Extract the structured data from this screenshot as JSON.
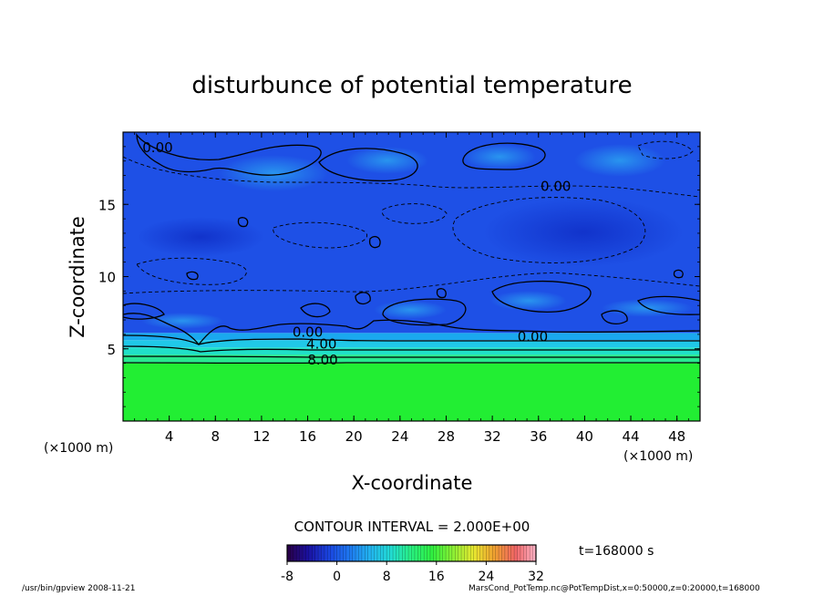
{
  "chart_data": {
    "type": "heatmap",
    "title": "disturbunce of potential temperature",
    "xlabel": "X-coordinate",
    "ylabel": "Z-coordinate",
    "x_unit": "(×1000 m)",
    "y_unit": "(×1000 m)",
    "xlim": [
      0,
      50
    ],
    "ylim": [
      0,
      20
    ],
    "x_ticks": [
      4,
      8,
      12,
      16,
      20,
      24,
      28,
      32,
      36,
      40,
      44,
      48
    ],
    "y_ticks": [
      5,
      10,
      15
    ],
    "contour_interval_text": "CONTOUR INTERVAL = 2.000E+00",
    "time_text": "t=168000 s",
    "colorbar": {
      "min": -8,
      "max": 32,
      "ticks": [
        -8,
        0,
        8,
        16,
        24,
        32
      ],
      "colors": [
        "#2a0044",
        "#1a10a0",
        "#1a44e0",
        "#1e78f0",
        "#22b4f0",
        "#22dcd4",
        "#28f080",
        "#30f040",
        "#8cf034",
        "#e8e830",
        "#f0a030",
        "#f06464",
        "#ffb4c8"
      ]
    },
    "bands": [
      {
        "z0": 0,
        "z1": 4,
        "value": 12,
        "color": "#22ee33"
      },
      {
        "z0": 4,
        "z1": 4.6,
        "value": 8,
        "color": "#28e890"
      },
      {
        "z0": 4.6,
        "z1": 5.1,
        "value": 6,
        "color": "#20e0c8"
      },
      {
        "z0": 5.1,
        "z1": 5.6,
        "value": 4,
        "color": "#20c8e8"
      },
      {
        "z0": 5.6,
        "z1": 6.1,
        "value": 2,
        "color": "#1aa8ee"
      },
      {
        "z0": 6.1,
        "z1": 20,
        "value": -2,
        "color": "#1e50e6"
      }
    ],
    "contour_labels": [
      {
        "x": 3.0,
        "z": 19.0,
        "text": "0.00"
      },
      {
        "x": 37.5,
        "z": 16.3,
        "text": "0.00"
      },
      {
        "x": 16.0,
        "z": 6.2,
        "text": "0.00"
      },
      {
        "x": 35.5,
        "z": 5.9,
        "text": "0.00"
      },
      {
        "x": 17.2,
        "z": 5.4,
        "text": "4.00"
      },
      {
        "x": 17.3,
        "z": 4.3,
        "text": "8.00"
      }
    ]
  },
  "footer": {
    "left": "/usr/bin/gpview   2008-11-21",
    "right": "MarsCond_PotTemp.nc@PotTempDist,x=0:50000,z=0:20000,t=168000"
  }
}
